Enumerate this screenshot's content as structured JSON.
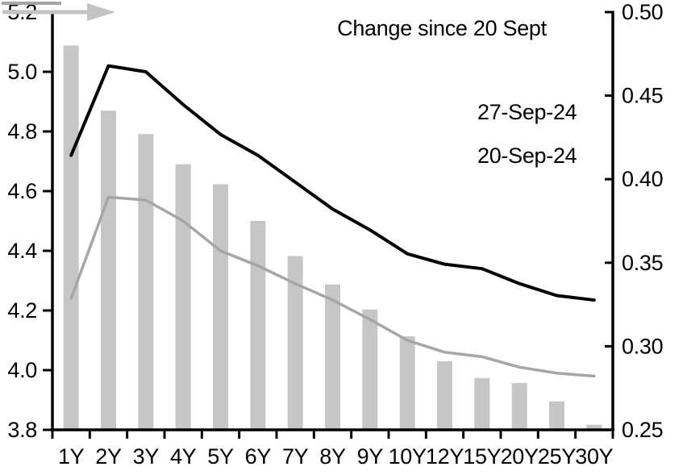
{
  "chart_data": {
    "type": "bar",
    "title": "",
    "categories": [
      "1Y",
      "2Y",
      "3Y",
      "4Y",
      "5Y",
      "6Y",
      "7Y",
      "8Y",
      "9Y",
      "10Y",
      "12Y",
      "15Y",
      "20Y",
      "25Y",
      "30Y"
    ],
    "series": [
      {
        "name": "Change since 20 Sept",
        "render": "bar",
        "axis": "right",
        "color": "#c6c6c6",
        "values": [
          0.48,
          0.441,
          0.427,
          0.409,
          0.397,
          0.375,
          0.354,
          0.337,
          0.322,
          0.306,
          0.291,
          0.281,
          0.278,
          0.267,
          0.253
        ]
      },
      {
        "name": "27-Sep-24",
        "render": "line",
        "axis": "left",
        "color": "#000000",
        "values": [
          4.72,
          5.02,
          5.0,
          4.89,
          4.79,
          4.72,
          4.63,
          4.54,
          4.47,
          4.39,
          4.355,
          4.34,
          4.29,
          4.25,
          4.235
        ]
      },
      {
        "name": "20-Sep-24",
        "render": "line",
        "axis": "left",
        "color": "#a6a6a6",
        "values": [
          4.24,
          4.58,
          4.57,
          4.5,
          4.4,
          4.35,
          4.29,
          4.235,
          4.17,
          4.1,
          4.06,
          4.045,
          4.01,
          3.99,
          3.98
        ]
      }
    ],
    "left_axis": {
      "min": 3.8,
      "max": 5.2,
      "tick_values": [
        5.2,
        5.0,
        4.8,
        4.6,
        4.4,
        4.2,
        4.0,
        3.8
      ],
      "tick_labels": [
        "5.2",
        "5.0",
        "4.8",
        "4.6",
        "4.4",
        "4.2",
        "4.0",
        "3.8"
      ]
    },
    "right_axis": {
      "min": 0.25,
      "max": 0.5,
      "tick_values": [
        0.5,
        0.45,
        0.4,
        0.35,
        0.3,
        0.25
      ],
      "tick_labels": [
        "0.50",
        "0.45",
        "0.40",
        "0.35",
        "0.30",
        "0.25"
      ]
    },
    "grid": false,
    "legend_position": "top-right"
  },
  "legend": {
    "title": "Change since 20 Sept",
    "arrow_color": "#c3c3c3",
    "items": [
      {
        "label": "27-Sep-24",
        "color": "#000000"
      },
      {
        "label": "20-Sep-24",
        "color": "#a6a6a6"
      }
    ]
  },
  "colors": {
    "axis": "#000000",
    "bar": "#c6c6c6",
    "line_27sep": "#000000",
    "line_20sep": "#a6a6a6",
    "background": "#ffffff"
  }
}
